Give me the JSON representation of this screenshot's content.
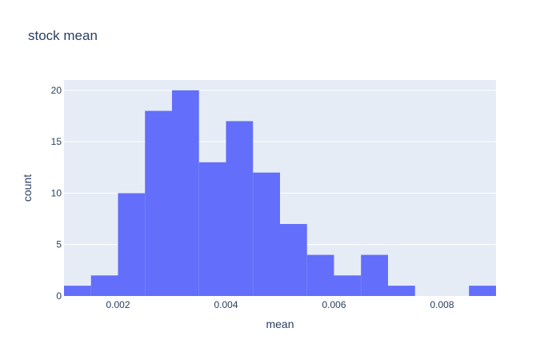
{
  "chart_data": {
    "type": "bar",
    "title": "stock mean",
    "xlabel": "mean",
    "ylabel": "count",
    "bins": [
      {
        "x0": 0.001,
        "x1": 0.0015,
        "count": 1
      },
      {
        "x0": 0.0015,
        "x1": 0.002,
        "count": 2
      },
      {
        "x0": 0.002,
        "x1": 0.0025,
        "count": 10
      },
      {
        "x0": 0.0025,
        "x1": 0.003,
        "count": 18
      },
      {
        "x0": 0.003,
        "x1": 0.0035,
        "count": 20
      },
      {
        "x0": 0.0035,
        "x1": 0.004,
        "count": 13
      },
      {
        "x0": 0.004,
        "x1": 0.0045,
        "count": 17
      },
      {
        "x0": 0.0045,
        "x1": 0.005,
        "count": 12
      },
      {
        "x0": 0.005,
        "x1": 0.0055,
        "count": 7
      },
      {
        "x0": 0.0055,
        "x1": 0.006,
        "count": 4
      },
      {
        "x0": 0.006,
        "x1": 0.0065,
        "count": 2
      },
      {
        "x0": 0.0065,
        "x1": 0.007,
        "count": 4
      },
      {
        "x0": 0.007,
        "x1": 0.0075,
        "count": 1
      },
      {
        "x0": 0.0075,
        "x1": 0.008,
        "count": 0
      },
      {
        "x0": 0.008,
        "x1": 0.0085,
        "count": 0
      },
      {
        "x0": 0.0085,
        "x1": 0.009,
        "count": 1
      }
    ],
    "xlim": [
      0.001,
      0.009
    ],
    "ylim": [
      0,
      21
    ],
    "xticks": [
      {
        "value": 0.002,
        "label": "0.002"
      },
      {
        "value": 0.004,
        "label": "0.004"
      },
      {
        "value": 0.006,
        "label": "0.006"
      },
      {
        "value": 0.008,
        "label": "0.008"
      }
    ],
    "yticks": [
      {
        "value": 0,
        "label": "0"
      },
      {
        "value": 5,
        "label": "5"
      },
      {
        "value": 10,
        "label": "10"
      },
      {
        "value": 15,
        "label": "15"
      },
      {
        "value": 20,
        "label": "20"
      }
    ],
    "grid": true,
    "colors": {
      "bar": "#636efa",
      "plot_bg": "#e5ecf6",
      "grid": "#ffffff",
      "text": "#2a3f5f"
    }
  }
}
